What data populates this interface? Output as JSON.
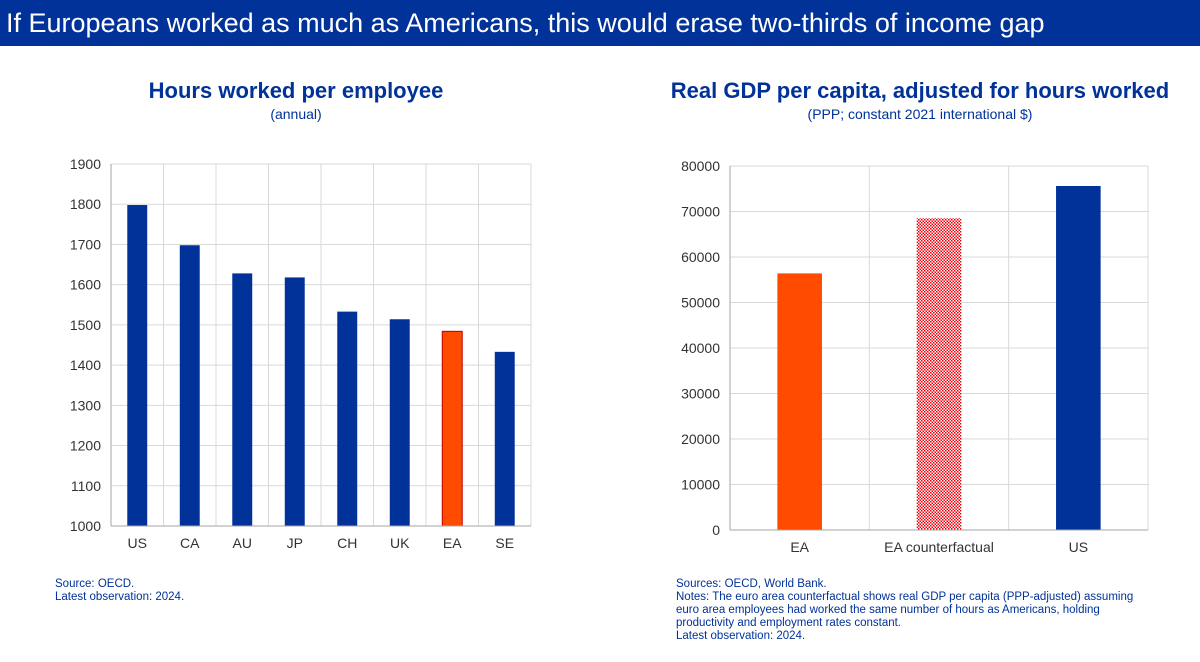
{
  "header": {
    "title": "If Europeans worked as much as Americans, this would erase two-thirds of income gap"
  },
  "colors": {
    "navy": "#003299",
    "orange": "#FF4B00",
    "pattern_red": "#E8000B",
    "grid": "#D9D9D9"
  },
  "chart_data": [
    {
      "type": "bar",
      "title": "Hours worked per employee",
      "subtitle": "(annual)",
      "categories": [
        "US",
        "CA",
        "AU",
        "JP",
        "CH",
        "UK",
        "EA",
        "SE"
      ],
      "values": [
        1798,
        1698,
        1628,
        1618,
        1533,
        1514,
        1484,
        1433
      ],
      "highlight": [
        "navy",
        "navy",
        "navy",
        "navy",
        "navy",
        "navy",
        "orange",
        "navy"
      ],
      "ylim": [
        1000,
        1900
      ],
      "yticks": [
        1000,
        1100,
        1200,
        1300,
        1400,
        1500,
        1600,
        1700,
        1800,
        1900
      ],
      "grid": true,
      "notes": [
        "Source: OECD.",
        "Latest observation: 2024."
      ]
    },
    {
      "type": "bar",
      "title": "Real GDP per capita, adjusted for hours worked",
      "subtitle": "(PPP; constant 2021 international $)",
      "categories": [
        "EA",
        "EA counterfactual",
        "US"
      ],
      "values": [
        56400,
        68500,
        75600
      ],
      "highlight": [
        "orange",
        "pattern",
        "navy"
      ],
      "ylim": [
        0,
        80000
      ],
      "yticks": [
        0,
        10000,
        20000,
        30000,
        40000,
        50000,
        60000,
        70000,
        80000
      ],
      "grid": true,
      "notes": [
        "Sources: OECD, World Bank.",
        "Notes: The euro area counterfactual shows real GDP per capita (PPP-adjusted) assuming",
        "euro area employees had worked the same number of hours as Americans, holding",
        "productivity and employment rates constant.",
        "Latest observation: 2024."
      ]
    }
  ]
}
